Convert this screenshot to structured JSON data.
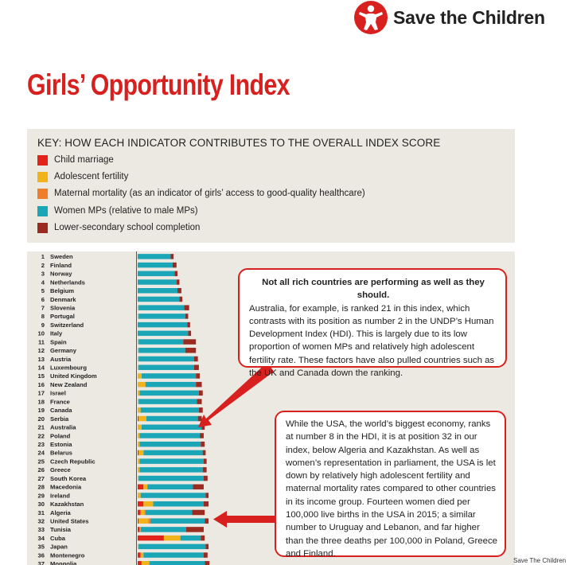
{
  "brand": {
    "name": "Save the Children",
    "color": "#d8211f"
  },
  "title": "Girls’ Opportunity Index",
  "key": {
    "title": "KEY: HOW EACH INDICATOR CONTRIBUTES TO THE OVERALL INDEX SCORE",
    "items": [
      {
        "label": "Child marriage",
        "color": "#e2231a"
      },
      {
        "label": "Adolescent fertility",
        "color": "#f2b21b"
      },
      {
        "label": "Maternal mortality (as an indicator of girls’ access to good-quality healthcare)",
        "color": "#ef7d2a"
      },
      {
        "label": "Women MPs (relative to male MPs)",
        "color": "#1aa6b7"
      },
      {
        "label": "Lower-secondary school completion",
        "color": "#9b2a21"
      }
    ]
  },
  "chart_data": {
    "type": "bar",
    "orientation": "horizontal",
    "stacked": true,
    "series_order": [
      "Child marriage",
      "Adolescent fertility",
      "Maternal mortality",
      "Women MPs",
      "Lower-secondary school completion"
    ],
    "colors": [
      "#e2231a",
      "#f2b21b",
      "#ef7d2a",
      "#1aa6b7",
      "#9b2a21"
    ],
    "rows": [
      {
        "rank": "1",
        "country": "Sweden",
        "values": [
          0,
          0,
          0,
          34,
          3
        ]
      },
      {
        "rank": "2",
        "country": "Finland",
        "values": [
          0,
          0,
          0,
          36,
          4
        ]
      },
      {
        "rank": "3",
        "country": "Norway",
        "values": [
          0,
          0,
          0,
          38,
          3
        ]
      },
      {
        "rank": "4",
        "country": "Netherlands",
        "values": [
          0,
          0,
          0,
          40,
          3
        ]
      },
      {
        "rank": "5",
        "country": "Belgium",
        "values": [
          0,
          0,
          0,
          41,
          4
        ]
      },
      {
        "rank": "6",
        "country": "Denmark",
        "values": [
          0,
          0,
          0,
          43,
          3
        ]
      },
      {
        "rank": "7",
        "country": "Slovenia",
        "values": [
          0,
          1,
          0,
          47,
          5
        ]
      },
      {
        "rank": "8",
        "country": "Portugal",
        "values": [
          0,
          1,
          0,
          48,
          3
        ]
      },
      {
        "rank": "9",
        "country": "Switzerland",
        "values": [
          0,
          0,
          0,
          51,
          3
        ]
      },
      {
        "rank": "10",
        "country": "Italy",
        "values": [
          0,
          0,
          0,
          52,
          3
        ]
      },
      {
        "rank": "11",
        "country": "Spain",
        "values": [
          0,
          1,
          0,
          46,
          13
        ]
      },
      {
        "rank": "12",
        "country": "Germany",
        "values": [
          0,
          1,
          0,
          48,
          11
        ]
      },
      {
        "rank": "13",
        "country": "Austria",
        "values": [
          0,
          1,
          0,
          57,
          4
        ]
      },
      {
        "rank": "14",
        "country": "Luxembourg",
        "values": [
          0,
          1,
          0,
          57,
          5
        ]
      },
      {
        "rank": "15",
        "country": "United Kingdom",
        "values": [
          0,
          4,
          0,
          56,
          4
        ]
      },
      {
        "rank": "16",
        "country": "New Zealand",
        "values": [
          0,
          8,
          0,
          52,
          6
        ]
      },
      {
        "rank": "17",
        "country": "Israel",
        "values": [
          0,
          2,
          0,
          61,
          4
        ]
      },
      {
        "rank": "18",
        "country": "France",
        "values": [
          0,
          1,
          0,
          60,
          5
        ]
      },
      {
        "rank": "19",
        "country": "Canada",
        "values": [
          0,
          3,
          0,
          60,
          4
        ]
      },
      {
        "rank": "20",
        "country": "Serbia",
        "values": [
          1,
          8,
          0,
          53,
          4
        ]
      },
      {
        "rank": "21",
        "country": "Australia",
        "values": [
          0,
          4,
          0,
          62,
          3
        ]
      },
      {
        "rank": "22",
        "country": "Poland",
        "values": [
          0,
          2,
          0,
          62,
          4
        ]
      },
      {
        "rank": "23",
        "country": "Estonia",
        "values": [
          0,
          2,
          0,
          63,
          4
        ]
      },
      {
        "rank": "24",
        "country": "Belarus",
        "values": [
          1,
          5,
          0,
          61,
          3
        ]
      },
      {
        "rank": "25",
        "country": "Czech Republic",
        "values": [
          0,
          2,
          0,
          66,
          3
        ]
      },
      {
        "rank": "26",
        "country": "Greece",
        "values": [
          0,
          2,
          0,
          65,
          4
        ]
      },
      {
        "rank": "27",
        "country": "South Korea",
        "values": [
          0,
          1,
          0,
          67,
          4
        ]
      },
      {
        "rank": "28",
        "country": "Macedonia",
        "values": [
          6,
          4,
          0,
          47,
          11
        ]
      },
      {
        "rank": "29",
        "country": "Ireland",
        "values": [
          0,
          3,
          0,
          67,
          3
        ]
      },
      {
        "rank": "30",
        "country": "Kazakhstan",
        "values": [
          6,
          10,
          0,
          52,
          5
        ]
      },
      {
        "rank": "31",
        "country": "Algeria",
        "values": [
          3,
          4,
          1,
          48,
          13
        ]
      },
      {
        "rank": "32",
        "country": "United States",
        "values": [
          1,
          10,
          2,
          56,
          4
        ]
      },
      {
        "rank": "33",
        "country": "Tunisia",
        "values": [
          2,
          1,
          0,
          47,
          18
        ]
      },
      {
        "rank": "34",
        "country": "Cuba",
        "values": [
          27,
          17,
          0,
          21,
          4
        ]
      },
      {
        "rank": "35",
        "country": "Japan",
        "values": [
          0,
          1,
          0,
          69,
          3
        ]
      },
      {
        "rank": "36",
        "country": "Montenegro",
        "values": [
          3,
          3,
          0,
          62,
          4
        ]
      },
      {
        "rank": "37",
        "country": "Mongolia",
        "values": [
          4,
          8,
          0,
          57,
          5
        ]
      }
    ]
  },
  "callouts": [
    {
      "lead": "Not all rich countries are performing as well as they should.",
      "body": " Australia, for example, is ranked 21 in this index, which contrasts with its position as number 2 in the UNDP’s Human Development Index (HDI). This is largely due to its low proportion of women MPs and relatively high adolescent fertility rate. These factors have also pulled countries such as the UK and Canada down the ranking."
    },
    {
      "body": "While the USA, the world’s biggest economy, ranks at number 8 in the HDI, it is at position 32 in our index, below Algeria and Kazakhstan. As well as women’s representation in parliament, the USA is let down by relatively high adolescent fertility and maternal mortality rates compared to other countries in its income group. Fourteen women died per 100,000 live births in the USA in 2015; a similar number to Uruguay and Lebanon, and far higher than the three deaths per 100,000 in Poland, Greece and Finland."
    }
  ],
  "credit": "Save The Children"
}
